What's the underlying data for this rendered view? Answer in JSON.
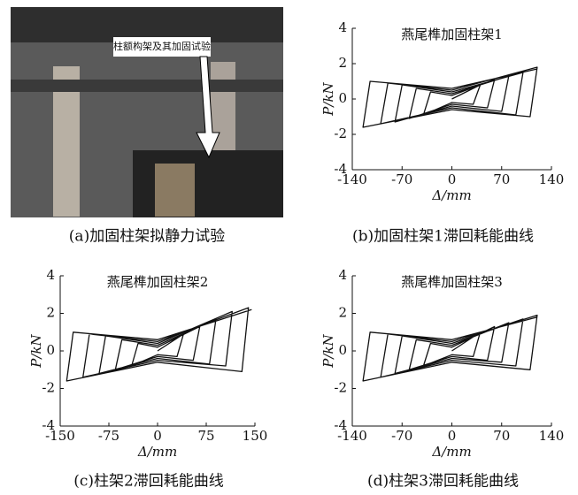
{
  "figure": {
    "panel_a": {
      "photo_label": "柱额构架及其加固试验",
      "caption": "(a)加固柱架拟静力试验"
    }
  },
  "chart_data": [
    {
      "type": "line",
      "title": "燕尾榫加固柱架1",
      "caption": "(b)加固柱架1滞回耗能曲线",
      "xlabel": "Δ/mm",
      "ylabel": "P/kN",
      "color": "#111111",
      "x": [
        0,
        40,
        30,
        0,
        -40,
        -30,
        0,
        60,
        50,
        0,
        -60,
        -50,
        0,
        80,
        70,
        0,
        -80,
        -70,
        0,
        100,
        90,
        0,
        -100,
        -90,
        0,
        120,
        110,
        0,
        -125,
        -115,
        0,
        120
      ],
      "values": [
        0,
        0.8,
        -0.3,
        -0.2,
        -0.9,
        0.4,
        0.2,
        1.1,
        -0.5,
        -0.3,
        -1.1,
        0.6,
        0.3,
        1.3,
        -0.7,
        -0.4,
        -1.3,
        0.8,
        0.4,
        1.5,
        -0.9,
        -0.5,
        -1.4,
        0.9,
        0.5,
        1.8,
        -1.0,
        -0.6,
        -1.6,
        1.0,
        0.6,
        1.7
      ],
      "xlim": [
        -140,
        140
      ],
      "ylim": [
        -4,
        4
      ],
      "xticks": [
        -140,
        -70,
        0,
        70,
        140
      ],
      "yticks": [
        -4,
        -2,
        0,
        2,
        4
      ]
    },
    {
      "type": "line",
      "title": "燕尾榫加固柱架2",
      "caption": "(c)柱架2滞回耗能曲线",
      "xlabel": "Δ/mm",
      "ylabel": "P/kN",
      "color": "#111111",
      "x": [
        0,
        40,
        30,
        0,
        -40,
        -30,
        0,
        65,
        55,
        0,
        -65,
        -55,
        0,
        90,
        80,
        0,
        -90,
        -80,
        0,
        115,
        105,
        0,
        -115,
        -105,
        0,
        140,
        130,
        0,
        -140,
        -130,
        0,
        145
      ],
      "values": [
        0,
        0.9,
        -0.3,
        -0.2,
        -0.8,
        0.4,
        0.2,
        1.3,
        -0.5,
        -0.3,
        -1.0,
        0.6,
        0.3,
        1.7,
        -0.7,
        -0.4,
        -1.2,
        0.8,
        0.4,
        2.1,
        -0.8,
        -0.5,
        -1.4,
        0.9,
        0.5,
        2.3,
        -1.1,
        -0.6,
        -1.6,
        1.0,
        0.6,
        2.2
      ],
      "xlim": [
        -150,
        150
      ],
      "ylim": [
        -4,
        4
      ],
      "xticks": [
        -150,
        -75,
        0,
        75,
        150
      ],
      "yticks": [
        -4,
        -2,
        0,
        2,
        4
      ]
    },
    {
      "type": "line",
      "title": "燕尾榫加固柱架3",
      "caption": "(d)柱架3滞回耗能曲线",
      "xlabel": "Δ/mm",
      "ylabel": "P/kN",
      "color": "#111111",
      "x": [
        0,
        40,
        30,
        0,
        -40,
        -30,
        0,
        60,
        50,
        0,
        -60,
        -50,
        0,
        80,
        70,
        0,
        -80,
        -70,
        0,
        100,
        90,
        0,
        -100,
        -90,
        0,
        120,
        110,
        0,
        -125,
        -115,
        0,
        120
      ],
      "values": [
        0,
        1.0,
        -0.3,
        -0.2,
        -0.8,
        0.4,
        0.2,
        1.3,
        -0.5,
        -0.3,
        -1.0,
        0.6,
        0.3,
        1.5,
        -0.6,
        -0.4,
        -1.2,
        0.8,
        0.4,
        1.7,
        -0.8,
        -0.5,
        -1.4,
        0.9,
        0.5,
        1.9,
        -1.0,
        -0.6,
        -1.6,
        1.0,
        0.6,
        1.8
      ],
      "xlim": [
        -140,
        140
      ],
      "ylim": [
        -4,
        4
      ],
      "xticks": [
        -140,
        -70,
        0,
        70,
        140
      ],
      "yticks": [
        -4,
        -2,
        0,
        2,
        4
      ]
    }
  ]
}
